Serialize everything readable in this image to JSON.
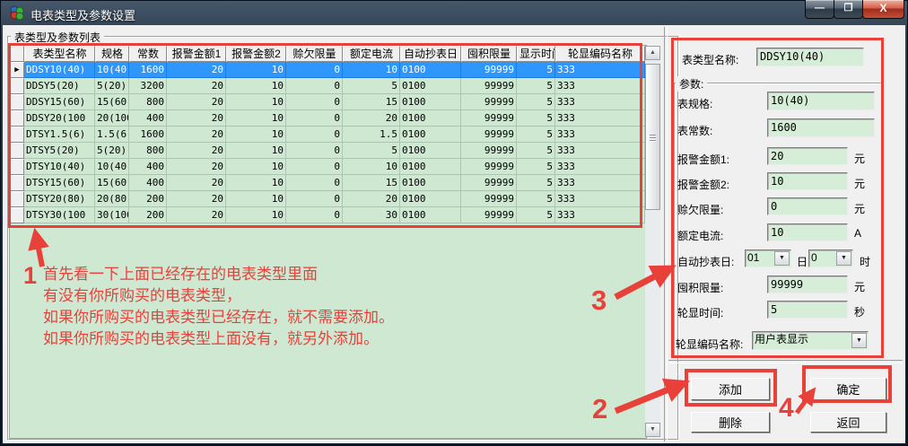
{
  "window": {
    "title": "电表类型及参数设置"
  },
  "left_group": {
    "label": "表类型及参数列表"
  },
  "table": {
    "headers": [
      "表类型名称",
      "规格",
      "常数",
      "报警金额1",
      "报警金额2",
      "赊欠限量",
      "额定电流",
      "自动抄表日",
      "囤积限量",
      "显示时间",
      "轮显编码名称"
    ],
    "rows": [
      [
        "DDSY10(40)",
        "10(40)",
        "1600",
        "20",
        "10",
        "0",
        "10",
        "0100",
        "99999",
        "5",
        "333"
      ],
      [
        "DDSY5(20)",
        "5(20)",
        "3200",
        "20",
        "10",
        "0",
        "5",
        "0100",
        "99999",
        "5",
        "333"
      ],
      [
        "DDSY15(60)",
        "15(60)",
        "800",
        "20",
        "10",
        "0",
        "15",
        "0100",
        "99999",
        "5",
        "333"
      ],
      [
        "DDSY20(100",
        "20(100",
        "400",
        "20",
        "10",
        "0",
        "20",
        "0100",
        "99999",
        "5",
        "333"
      ],
      [
        "DTSY1.5(6)",
        "1.5(6)",
        "1600",
        "20",
        "10",
        "0",
        "1.5",
        "0100",
        "99999",
        "5",
        "333"
      ],
      [
        "DTSY5(20)",
        "5(20)",
        "800",
        "20",
        "10",
        "0",
        "5",
        "0100",
        "99999",
        "5",
        "333"
      ],
      [
        "DTSY10(40)",
        "10(40)",
        "400",
        "20",
        "10",
        "0",
        "10",
        "0100",
        "99999",
        "5",
        "333"
      ],
      [
        "DTSY15(60)",
        "15(60)",
        "400",
        "20",
        "10",
        "0",
        "15",
        "0100",
        "99999",
        "5",
        "333"
      ],
      [
        "DTSY20(80)",
        "20(80)",
        "200",
        "20",
        "10",
        "0",
        "20",
        "0100",
        "99999",
        "5",
        "333"
      ],
      [
        "DTSY30(100",
        "30(100",
        "200",
        "20",
        "10",
        "0",
        "30",
        "0100",
        "99999",
        "5",
        "333"
      ]
    ],
    "selected_row_index": 0
  },
  "panel": {
    "type_name": {
      "label": "表类型名称:",
      "value": "DDSY10(40)"
    },
    "params_group_label": "参数:",
    "fields": [
      {
        "label": "表规格:",
        "value": "10(40)",
        "unit": ""
      },
      {
        "label": "表常数:",
        "value": "1600",
        "unit": ""
      },
      {
        "label": "报警金额1:",
        "value": "20",
        "unit": "元"
      },
      {
        "label": "报警金额2:",
        "value": "10",
        "unit": "元"
      },
      {
        "label": "赊欠限量:",
        "value": "0",
        "unit": "元"
      },
      {
        "label": "额定电流:",
        "value": "10",
        "unit": "A"
      }
    ],
    "auto_read": {
      "label": "自动抄表日:",
      "day_value": "01",
      "day_unit": "日",
      "hour_value": "0",
      "hour_unit": "时"
    },
    "fields2": [
      {
        "label": "囤积限量:",
        "value": "99999",
        "unit": "元"
      },
      {
        "label": "轮显时间:",
        "value": "5",
        "unit": "秒"
      }
    ],
    "rotate_code": {
      "label": "轮显编码名称:",
      "value": "用户表显示"
    }
  },
  "buttons": {
    "add": "添加",
    "ok": "确定",
    "delete": "删除",
    "back": "返回"
  },
  "annotations": {
    "step1": "1",
    "step2": "2",
    "step3": "3",
    "step4": "4",
    "note_lines": [
      "首先看一下上面已经存在的电表类型里面",
      "有没有你所购买的电表类型，",
      "如果你所购买的电表类型已经存在，就不需要添加。",
      "如果你所购买的电表类型上面没有，就另外添加。"
    ]
  },
  "icons": {
    "minimize": "—",
    "maximize": "❐",
    "close": "X",
    "up_arrow": "▲",
    "down_arrow": "▼",
    "drop_arrow": "▼",
    "row_pointer": "▶"
  },
  "colors": {
    "selection_blue": "#2f97fb",
    "grid_green": "#cfe8d2",
    "field_green": "#d6edd8",
    "annotation_red": "#e8413a"
  }
}
